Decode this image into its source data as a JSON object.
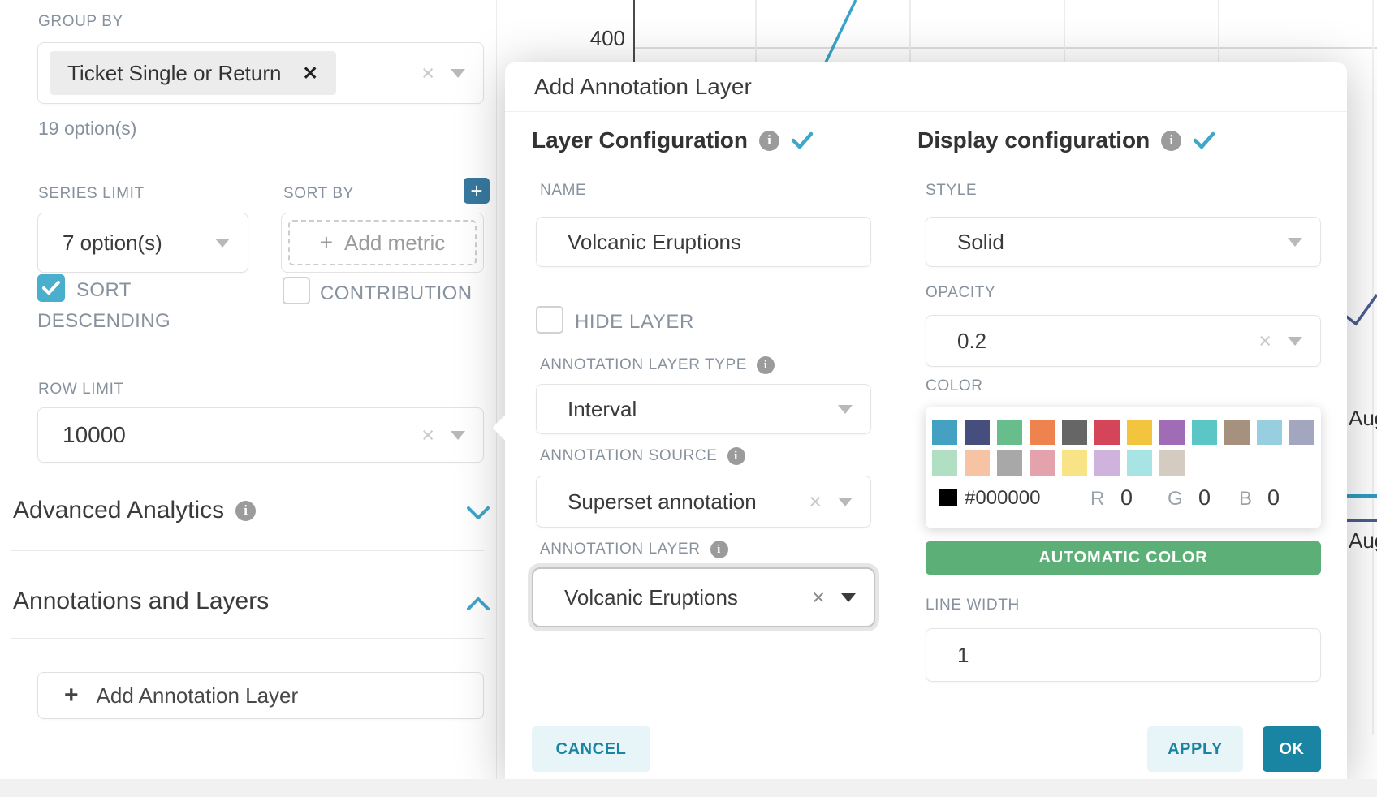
{
  "icons": {
    "clear": "×",
    "tag_remove": "✕",
    "plus": "+",
    "info": "i"
  },
  "left_panel": {
    "group_by_label": "GROUP BY",
    "group_by_value": "Ticket Single or Return",
    "group_by_hint": "19 option(s)",
    "series_limit_label": "SERIES LIMIT",
    "series_limit_value": "7 option(s)",
    "sort_by_label": "SORT BY",
    "sort_by_placeholder": "Add metric",
    "sort_descending_label_line1": "SORT",
    "sort_descending_label_line2": "DESCENDING",
    "sort_descending_checked": true,
    "contribution_label": "CONTRIBUTION",
    "contribution_checked": false,
    "row_limit_label": "ROW LIMIT",
    "row_limit_value": "10000",
    "advanced_analytics_label": "Advanced Analytics",
    "annotations_layers_label": "Annotations and Layers",
    "add_annotation_layer_label": "Add Annotation Layer"
  },
  "chart": {
    "y_tick": "400",
    "x_tick_upper": "Aug",
    "x_tick_lower": "Aug",
    "series_line_color": "#3aa3c9",
    "navy_line_color": "#4a5e8e",
    "teal_line_color": "#2d9ec0"
  },
  "modal": {
    "title": "Add Annotation Layer",
    "layer_configuration": {
      "heading": "Layer Configuration",
      "name_label": "NAME",
      "name_value": "Volcanic Eruptions",
      "hide_layer_label": "HIDE LAYER",
      "hide_layer_checked": false,
      "annotation_layer_type_label": "ANNOTATION LAYER TYPE",
      "annotation_layer_type_value": "Interval",
      "annotation_source_label": "ANNOTATION SOURCE",
      "annotation_source_value": "Superset annotation",
      "annotation_layer_label": "ANNOTATION LAYER",
      "annotation_layer_value": "Volcanic Eruptions"
    },
    "display_configuration": {
      "heading": "Display configuration",
      "style_label": "STYLE",
      "style_value": "Solid",
      "opacity_label": "OPACITY",
      "opacity_value": "0.2",
      "color_label": "COLOR",
      "palette_row1": [
        "#44a1c1",
        "#454e7c",
        "#67bd8b",
        "#ef8350",
        "#666666",
        "#d4455a",
        "#f3c53f",
        "#a06cb6",
        "#5bc6c6",
        "#a5917d",
        "#97cfe0",
        "#a2a6be"
      ],
      "palette_row2": [
        "#b1dfc3",
        "#f6c4a5",
        "#a8a8a8",
        "#e4a2ac",
        "#f8e487",
        "#cfb3dd",
        "#a8e4e4",
        "#d4ccc1"
      ],
      "current_color_swatch": "#000000",
      "hex_value": "#000000",
      "r_label": "R",
      "r_value": "0",
      "g_label": "G",
      "g_value": "0",
      "b_label": "B",
      "b_value": "0",
      "automatic_color_label": "AUTOMATIC COLOR",
      "automatic_color_bg": "#5cb077",
      "line_width_label": "LINE WIDTH",
      "line_width_value": "1"
    },
    "footer": {
      "cancel_label": "CANCEL",
      "apply_label": "APPLY",
      "ok_label": "OK"
    }
  }
}
